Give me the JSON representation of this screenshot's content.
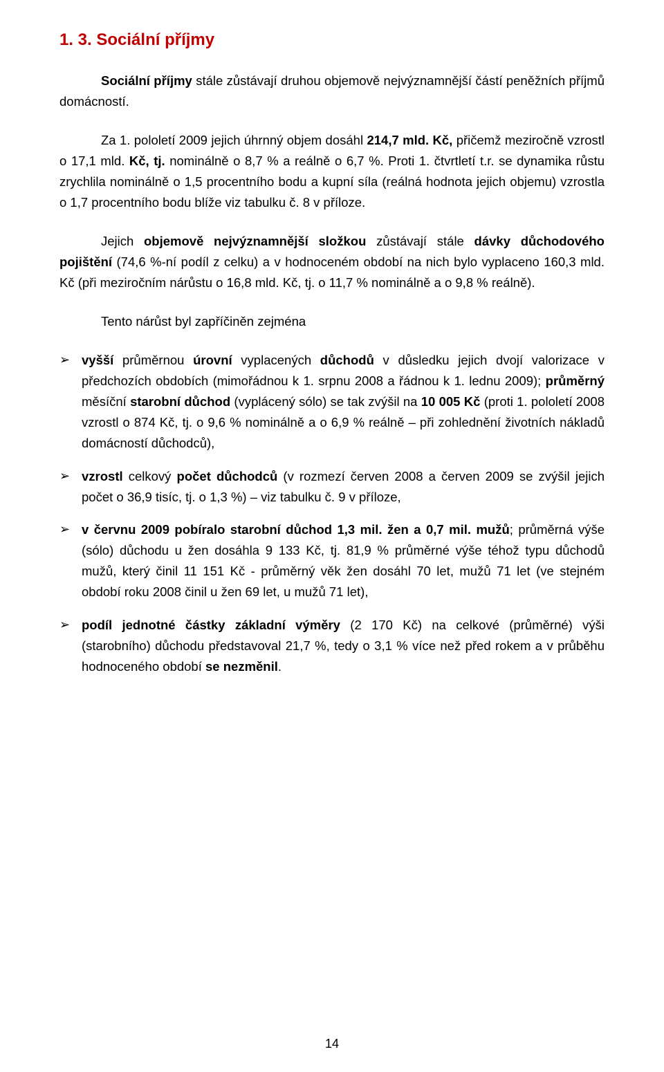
{
  "heading": "1. 3. Sociální příjmy",
  "paragraphs": {
    "p1_a": "Sociální příjmy",
    "p1_b": " stále zůstávají druhou objemově nejvýznamnější částí peněžních příjmů domácností.",
    "p2_a": "Za 1. pololetí 2009 jejich úhrnný  objem dosáhl  ",
    "p2_b": "214,7 mld. Kč,",
    "p2_c": " přičemž meziročně vzrostl  o 17,1 mld. ",
    "p2_d": "Kč, tj.",
    "p2_e": " nominálně o 8,7 % a reálně o 6,7 %. Proti 1. čtvrtletí t.r. se dynamika růstu zrychlila nominálně o 1,5 procentního bodu  a kupní síla (reálná hodnota jejich objemu) vzrostla o 1,7 procentního bodu blíže viz tabulku č. 8 v příloze.",
    "p3_a": "Jejich ",
    "p3_b": "objemově nejvýznamnější složkou",
    "p3_c": " zůstávají stále ",
    "p3_d": "dávky důchodového pojištění",
    "p3_e": "  (74,6 %-ní podíl z celku) a v hodnoceném období na nich bylo vyplaceno 160,3 mld. Kč (při meziročním nárůstu o 16,8 mld. Kč, tj. o 11,7 % nominálně a o 9,8 % reálně).",
    "p4": "Tento nárůst byl zapříčiněn zejména"
  },
  "bullets": {
    "b1_a": "vyšší",
    "b1_b": " průměrnou ",
    "b1_c": "úrovní",
    "b1_d": " vyplacených ",
    "b1_e": "důchodů",
    "b1_f": " v důsledku jejich dvojí valorizace v předchozích obdobích (mimořádnou  k  1. srpnu 2008  a řádnou k 1. lednu 2009); ",
    "b1_g": "průměrný",
    "b1_h": " měsíční ",
    "b1_i": "starobní důchod",
    "b1_j": " (vyplácený sólo) se tak zvýšil na ",
    "b1_k": "10 005 Kč",
    "b1_l": " (proti 1. pololetí 2008 vzrostl o 874 Kč, tj. o 9,6 % nominálně a o 6,9 % reálně – při zohlednění životních nákladů domácností důchodců),",
    "b2_a": "vzrostl",
    "b2_b": " celkový ",
    "b2_c": "počet důchodců",
    "b2_d": " (v rozmezí červen 2008 a červen 2009 se zvýšil jejich počet o 36,9 tisíc, tj. o 1,3 %) – viz tabulku č. 9 v příloze,",
    "b3_a": "v červnu 2009 pobíralo starobní důchod 1,3 mil. žen a  0,7 mil. mužů",
    "b3_b": "; průměrná výše (sólo) důchodu u žen dosáhla  9 133 Kč, tj. 81,9 %  průměrné výše téhož typu důchodů mužů, který činil 11 151 Kč -  průměrný věk žen dosáhl 70 let, mužů  71 let  (ve stejném období roku 2008 činil u žen 69 let, u mužů 71 let),",
    "b4_a": "podíl jednotné částky základní výměry",
    "b4_b": " (2 170 Kč) na celkové (průměrné) výši (starobního) důchodu  představoval  21,7 %, tedy o 3,1 % více než před rokem a v průběhu hodnoceného období ",
    "b4_c": "se nezměnil",
    "b4_d": "."
  },
  "pageNumber": "14",
  "colors": {
    "heading": "#c00000",
    "text": "#000000",
    "background": "#ffffff"
  }
}
